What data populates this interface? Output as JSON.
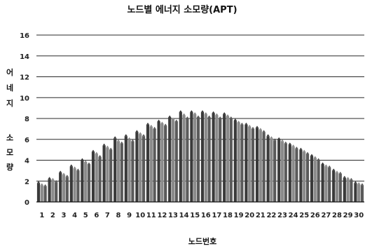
{
  "chart_data": {
    "type": "bar",
    "title": "노드별 에너지 소모량(APT)",
    "xlabel": "노드번호",
    "ylabel_chars": [
      "어",
      "네",
      "지",
      "소",
      "모",
      "량"
    ],
    "ylim": [
      0,
      16
    ],
    "yticks": [
      "0",
      "2",
      "4",
      "6",
      "8",
      "10",
      "12",
      "14",
      "16"
    ],
    "grid": true,
    "categories": [
      "1",
      "2",
      "3",
      "4",
      "5",
      "6",
      "7",
      "8",
      "9",
      "10",
      "11",
      "12",
      "13",
      "14",
      "15",
      "16",
      "17",
      "18",
      "19",
      "20",
      "21",
      "22",
      "23",
      "24",
      "25",
      "26",
      "27",
      "28",
      "29",
      "30"
    ],
    "series": [
      {
        "values": [
          1.8,
          2.2,
          2.8,
          3.4,
          4.0,
          4.8,
          5.4,
          6.1,
          6.3,
          6.7,
          7.4,
          7.7,
          8.1,
          8.6,
          8.6,
          8.6,
          8.5,
          8.4,
          7.8,
          7.4,
          7.1,
          6.3,
          6.0,
          5.5,
          5.0,
          4.4,
          3.6,
          3.0,
          2.3,
          1.8
        ]
      },
      {
        "values": [
          1.6,
          2.1,
          2.6,
          3.2,
          3.8,
          4.6,
          5.2,
          5.8,
          6.0,
          6.5,
          7.2,
          7.5,
          7.9,
          8.3,
          8.4,
          8.4,
          8.3,
          8.2,
          7.6,
          7.2,
          6.9,
          6.1,
          5.8,
          5.3,
          4.8,
          4.2,
          3.4,
          2.8,
          2.2,
          1.7
        ]
      },
      {
        "values": [
          1.5,
          1.9,
          2.4,
          3.0,
          3.6,
          4.3,
          5.0,
          5.6,
          5.8,
          6.3,
          7.0,
          7.3,
          7.7,
          8.0,
          8.1,
          8.1,
          8.0,
          8.0,
          7.4,
          7.0,
          6.7,
          5.9,
          5.6,
          5.1,
          4.6,
          4.0,
          3.3,
          2.7,
          2.1,
          1.6
        ]
      }
    ],
    "colors": [
      "#3a3a3a",
      "#8a8a8a",
      "#5a5a5a"
    ]
  }
}
